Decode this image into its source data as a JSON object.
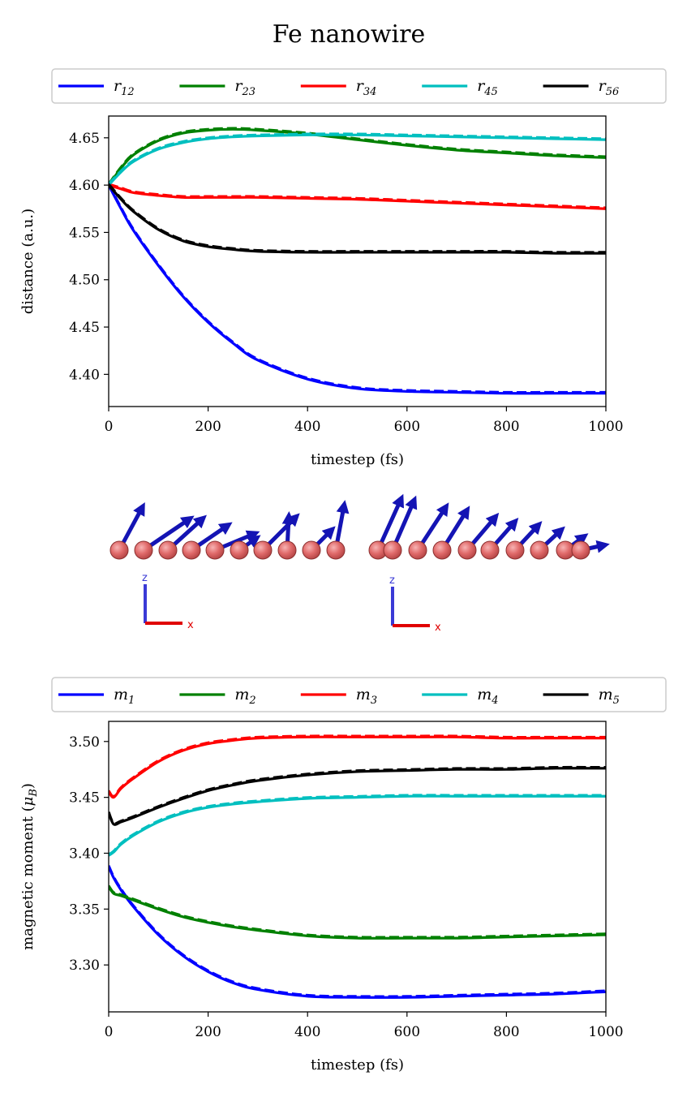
{
  "figure": {
    "title": "Fe nanowire"
  },
  "chart_data": [
    {
      "type": "line",
      "title": "",
      "xlabel": "timestep (fs)",
      "ylabel": "distance (a.u.)",
      "xlim": [
        0,
        1000
      ],
      "ylim": [
        4.366,
        4.673
      ],
      "xticks": [
        0,
        200,
        400,
        600,
        800,
        1000
      ],
      "xtick_labels": [
        "0",
        "200",
        "400",
        "600",
        "800",
        "1000"
      ],
      "yticks": [
        4.4,
        4.45,
        4.5,
        4.55,
        4.6,
        4.65
      ],
      "ytick_labels": [
        "4.40",
        "4.45",
        "4.50",
        "4.55",
        "4.60",
        "4.65"
      ],
      "grid": false,
      "legend_position": "top, above plot, 5 columns",
      "line_styles": "solid and dashed curves per series",
      "x": [
        0,
        25,
        50,
        100,
        150,
        200,
        250,
        300,
        400,
        500,
        600,
        700,
        800,
        900,
        1000
      ],
      "series": [
        {
          "name": "r_12",
          "legend_base": "r",
          "legend_sub": "12",
          "color": "#0000ff",
          "values": [
            4.6,
            4.575,
            4.552,
            4.515,
            4.482,
            4.455,
            4.433,
            4.415,
            4.395,
            4.385,
            4.382,
            4.381,
            4.38,
            4.38,
            4.38
          ]
        },
        {
          "name": "r_23",
          "legend_base": "r",
          "legend_sub": "23",
          "color": "#008000",
          "values": [
            4.6,
            4.618,
            4.632,
            4.647,
            4.655,
            4.658,
            4.659,
            4.658,
            4.654,
            4.648,
            4.642,
            4.637,
            4.634,
            4.631,
            4.629
          ]
        },
        {
          "name": "r_34",
          "legend_base": "r",
          "legend_sub": "34",
          "color": "#ff0000",
          "values": [
            4.6,
            4.596,
            4.592,
            4.589,
            4.587,
            4.587,
            4.587,
            4.587,
            4.586,
            4.585,
            4.583,
            4.581,
            4.579,
            4.577,
            4.575
          ]
        },
        {
          "name": "r_45",
          "legend_base": "r",
          "legend_sub": "45",
          "color": "#00bfbf",
          "values": [
            4.6,
            4.614,
            4.625,
            4.638,
            4.645,
            4.649,
            4.651,
            4.652,
            4.653,
            4.653,
            4.652,
            4.651,
            4.65,
            4.649,
            4.648
          ]
        },
        {
          "name": "r_56",
          "legend_base": "r",
          "legend_sub": "56",
          "color": "#000000",
          "values": [
            4.6,
            4.585,
            4.572,
            4.553,
            4.541,
            4.535,
            4.532,
            4.53,
            4.529,
            4.529,
            4.529,
            4.529,
            4.529,
            4.528,
            4.528
          ]
        }
      ]
    },
    {
      "type": "line",
      "title": "",
      "xlabel": "timestep (fs)",
      "ylabel": "magnetic moment (μ_B)",
      "ylabel_base": "magnetic moment (",
      "ylabel_mu": "μ",
      "ylabel_sub": "B",
      "ylabel_close": ")",
      "xlim": [
        0,
        1000
      ],
      "ylim": [
        3.258,
        3.518
      ],
      "xticks": [
        0,
        200,
        400,
        600,
        800,
        1000
      ],
      "xtick_labels": [
        "0",
        "200",
        "400",
        "600",
        "800",
        "1000"
      ],
      "yticks": [
        3.3,
        3.35,
        3.4,
        3.45,
        3.5
      ],
      "ytick_labels": [
        "3.30",
        "3.35",
        "3.40",
        "3.45",
        "3.50"
      ],
      "grid": false,
      "legend_position": "top, above plot, 5 columns",
      "line_styles": "solid and dashed curves per series",
      "x": [
        0,
        10,
        25,
        50,
        100,
        150,
        200,
        250,
        300,
        400,
        500,
        600,
        700,
        800,
        900,
        1000
      ],
      "series": [
        {
          "name": "m_1",
          "legend_base": "m",
          "legend_sub": "1",
          "color": "#0000ff",
          "values": [
            3.388,
            3.378,
            3.367,
            3.352,
            3.327,
            3.308,
            3.294,
            3.284,
            3.278,
            3.272,
            3.271,
            3.271,
            3.272,
            3.273,
            3.274,
            3.276
          ]
        },
        {
          "name": "m_2",
          "legend_base": "m",
          "legend_sub": "2",
          "color": "#008000",
          "values": [
            3.37,
            3.364,
            3.362,
            3.358,
            3.35,
            3.343,
            3.338,
            3.334,
            3.331,
            3.326,
            3.324,
            3.324,
            3.324,
            3.325,
            3.326,
            3.327
          ]
        },
        {
          "name": "m_3",
          "legend_base": "m",
          "legend_sub": "3",
          "color": "#ff0000",
          "values": [
            3.455,
            3.45,
            3.458,
            3.467,
            3.482,
            3.492,
            3.498,
            3.501,
            3.503,
            3.504,
            3.504,
            3.504,
            3.504,
            3.503,
            3.503,
            3.503
          ]
        },
        {
          "name": "m_4",
          "legend_base": "m",
          "legend_sub": "4",
          "color": "#00bfbf",
          "values": [
            3.398,
            3.401,
            3.408,
            3.416,
            3.428,
            3.436,
            3.441,
            3.444,
            3.446,
            3.449,
            3.45,
            3.451,
            3.451,
            3.451,
            3.451,
            3.451
          ]
        },
        {
          "name": "m_5",
          "legend_base": "m",
          "legend_sub": "5",
          "color": "#000000",
          "values": [
            3.436,
            3.426,
            3.428,
            3.432,
            3.441,
            3.449,
            3.456,
            3.461,
            3.465,
            3.47,
            3.473,
            3.474,
            3.475,
            3.475,
            3.476,
            3.476
          ]
        }
      ]
    }
  ],
  "render": {
    "axis_labels": [
      "z",
      "x",
      "z",
      "x"
    ],
    "colors": {
      "atom": "#e06a6a",
      "atom_edge": "#8c2f2f",
      "spin_arrow": "#1414b4",
      "axis_z": "#3a3ad6",
      "axis_x": "#e00000"
    }
  }
}
